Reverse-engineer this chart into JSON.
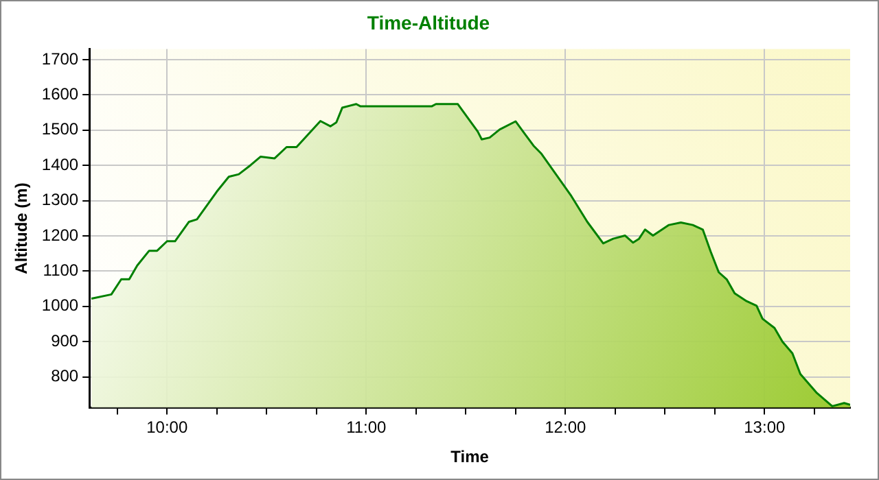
{
  "chart_data": {
    "type": "area",
    "title": "Time-Altitude",
    "xlabel": "Time",
    "ylabel": "Altitude (m)",
    "xlim": [
      9.61,
      13.43
    ],
    "ylim": [
      713,
      1730
    ],
    "xticks": [
      {
        "value": 9.75,
        "label": null
      },
      {
        "value": 10,
        "label": "10:00"
      },
      {
        "value": 10.25,
        "label": null
      },
      {
        "value": 10.5,
        "label": null
      },
      {
        "value": 10.75,
        "label": null
      },
      {
        "value": 11,
        "label": "11:00"
      },
      {
        "value": 11.25,
        "label": null
      },
      {
        "value": 11.5,
        "label": null
      },
      {
        "value": 11.75,
        "label": null
      },
      {
        "value": 12,
        "label": "12:00"
      },
      {
        "value": 12.25,
        "label": null
      },
      {
        "value": 12.5,
        "label": null
      },
      {
        "value": 12.75,
        "label": null
      },
      {
        "value": 13,
        "label": "13:00"
      },
      {
        "value": 13.25,
        "label": null
      }
    ],
    "yticks": [
      800,
      900,
      1000,
      1100,
      1200,
      1300,
      1400,
      1500,
      1600,
      1700
    ],
    "grid": true,
    "legend": false,
    "marker": "none",
    "line_style": "solid",
    "series": [
      {
        "color": "#008000",
        "x": [
          9.62,
          9.72,
          9.77,
          9.81,
          9.85,
          9.91,
          9.95,
          10.0,
          10.04,
          10.11,
          10.15,
          10.25,
          10.31,
          10.36,
          10.42,
          10.47,
          10.54,
          10.6,
          10.65,
          10.71,
          10.77,
          10.82,
          10.85,
          10.88,
          10.95,
          10.97,
          11.33,
          11.35,
          11.46,
          11.51,
          11.56,
          11.58,
          11.62,
          11.67,
          11.75,
          11.84,
          11.88,
          12.03,
          12.11,
          12.19,
          12.24,
          12.3,
          12.34,
          12.37,
          12.4,
          12.44,
          12.52,
          12.58,
          12.64,
          12.69,
          12.73,
          12.77,
          12.81,
          12.85,
          12.91,
          12.96,
          12.99,
          13.05,
          13.09,
          13.14,
          13.18,
          13.26,
          13.34,
          13.4,
          13.43
        ],
        "values": [
          1022,
          1034,
          1077,
          1077,
          1116,
          1158,
          1158,
          1185,
          1185,
          1240,
          1247,
          1326,
          1368,
          1375,
          1401,
          1425,
          1420,
          1452,
          1452,
          1489,
          1526,
          1511,
          1522,
          1564,
          1574,
          1568,
          1568,
          1574,
          1574,
          1535,
          1496,
          1474,
          1479,
          1502,
          1525,
          1456,
          1433,
          1313,
          1240,
          1179,
          1192,
          1201,
          1181,
          1192,
          1218,
          1201,
          1231,
          1238,
          1231,
          1218,
          1155,
          1097,
          1077,
          1037,
          1015,
          1002,
          965,
          939,
          900,
          867,
          808,
          756,
          717,
          726,
          721
        ]
      }
    ]
  }
}
